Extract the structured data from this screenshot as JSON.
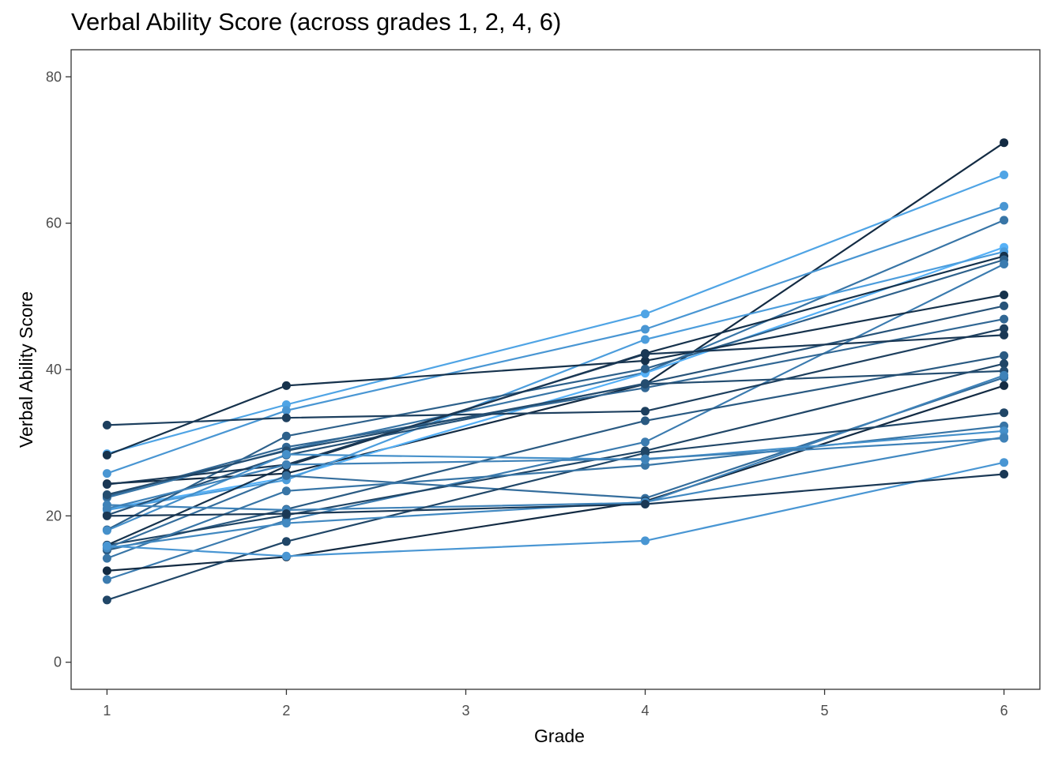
{
  "chart_data": {
    "type": "line",
    "title": "Verbal Ability Score (across grades 1, 2, 4, 6)",
    "xlabel": "Grade",
    "ylabel": "Verbal Ability Score",
    "x": [
      1,
      2,
      4,
      6
    ],
    "xlim": [
      0.8,
      6.2
    ],
    "ylim": [
      -3.7,
      83.7
    ],
    "x_ticks": [
      "1",
      "2",
      "3",
      "4",
      "5",
      "6"
    ],
    "y_ticks": [
      "0",
      "20",
      "40",
      "60",
      "80"
    ],
    "grid": false,
    "legend": "none",
    "colors": [
      "#132b43",
      "#56b1f7"
    ],
    "series": [
      {
        "values": [
          24.4,
          25.8,
          38.0,
          71.0
        ],
        "shade": 0.0
      },
      {
        "values": [
          28.5,
          35.2,
          47.6,
          66.6
        ],
        "shade": 0.9
      },
      {
        "values": [
          25.8,
          34.4,
          45.5,
          62.3
        ],
        "shade": 0.8
      },
      {
        "values": [
          22.5,
          29.0,
          39.6,
          60.4
        ],
        "shade": 0.55
      },
      {
        "values": [
          21.0,
          25.2,
          39.5,
          56.7
        ],
        "shade": 1.0
      },
      {
        "values": [
          20.8,
          24.9,
          44.1,
          56.1
        ],
        "shade": 0.85
      },
      {
        "values": [
          16.0,
          26.8,
          42.2,
          55.5
        ],
        "shade": 0.05
      },
      {
        "values": [
          18.1,
          30.9,
          40.1,
          55.0
        ],
        "shade": 0.4
      },
      {
        "values": [
          11.3,
          19.4,
          30.1,
          54.4
        ],
        "shade": 0.6
      },
      {
        "values": [
          28.3,
          37.8,
          41.2,
          50.2
        ],
        "shade": 0.05
      },
      {
        "values": [
          20.1,
          28.3,
          38.1,
          48.7
        ],
        "shade": 0.3
      },
      {
        "values": [
          22.7,
          29.4,
          37.5,
          46.9
        ],
        "shade": 0.45
      },
      {
        "values": [
          32.4,
          33.4,
          34.3,
          45.6
        ],
        "shade": 0.15
      },
      {
        "values": [
          24.3,
          27.0,
          42.1,
          44.7
        ],
        "shade": 0.1
      },
      {
        "values": [
          15.3,
          20.9,
          33.0,
          41.9
        ],
        "shade": 0.35
      },
      {
        "values": [
          16.0,
          20.1,
          28.9,
          40.8
        ],
        "shade": 0.2
      },
      {
        "values": [
          22.9,
          28.9,
          38.0,
          39.8
        ],
        "shade": 0.25
      },
      {
        "values": [
          15.6,
          25.5,
          22.4,
          38.9
        ],
        "shade": 0.5
      },
      {
        "values": [
          12.5,
          14.4,
          22.0,
          37.8
        ],
        "shade": 0.0
      },
      {
        "values": [
          21.5,
          20.8,
          21.8,
          39.2
        ],
        "shade": 0.65
      },
      {
        "values": [
          8.5,
          16.5,
          28.6,
          34.1
        ],
        "shade": 0.2
      },
      {
        "values": [
          14.2,
          23.4,
          26.9,
          32.3
        ],
        "shade": 0.55
      },
      {
        "values": [
          18.0,
          28.4,
          27.7,
          31.6
        ],
        "shade": 0.75
      },
      {
        "values": [
          15.6,
          19.0,
          21.9,
          30.8
        ],
        "shade": 0.7
      },
      {
        "values": [
          21.0,
          27.0,
          27.8,
          30.6
        ],
        "shade": 0.65
      },
      {
        "values": [
          15.9,
          14.5,
          16.6,
          27.3
        ],
        "shade": 0.8
      },
      {
        "values": [
          20.0,
          20.3,
          21.6,
          25.7
        ],
        "shade": 0.1
      }
    ]
  }
}
